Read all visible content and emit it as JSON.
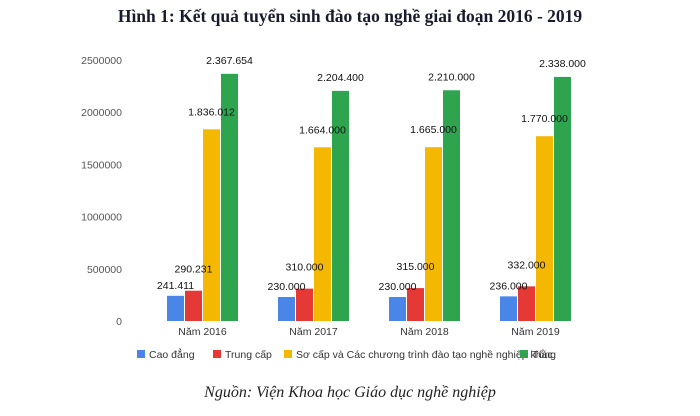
{
  "chart_data": {
    "type": "bar",
    "title": "Hình 1: Kết quả tuyển sinh đào tạo nghề giai đoạn 2016 - 2019",
    "categories": [
      "Năm 2016",
      "Năm 2017",
      "Năm 2018",
      "Năm 2019"
    ],
    "ylim": [
      0,
      2500000
    ],
    "yticks": [
      "0",
      "500000",
      "1000000",
      "1500000",
      "2000000",
      "2500000"
    ],
    "legend_position": "bottom",
    "grid": false,
    "series": [
      {
        "name": "Cao đẳng",
        "color": "#4A86E8",
        "values": [
          241411,
          230000,
          230000,
          236000
        ],
        "labels": [
          "241.411",
          "230.000",
          "230.000",
          "236.000"
        ]
      },
      {
        "name": "Trung cấp",
        "color": "#E53935",
        "values": [
          290231,
          310000,
          315000,
          332000
        ],
        "labels": [
          "290.231",
          "310.000",
          "315.000",
          "332.000"
        ]
      },
      {
        "name": "Sơ cấp và Các chương trình đào tạo nghề nghiệp khác",
        "color": "#F5B800",
        "values": [
          1836012,
          1664000,
          1665000,
          1770000
        ],
        "labels": [
          "1.836.012",
          "1.664.000",
          "1.665.000",
          "1.770.000"
        ]
      },
      {
        "name": "Tổng",
        "color": "#2EA44F",
        "values": [
          2367654,
          2204400,
          2210000,
          2338000
        ],
        "labels": [
          "2.367.654",
          "2.204.400",
          "2.210.000",
          "2.338.000"
        ]
      }
    ]
  },
  "source": "Nguồn: Viện Khoa học Giáo dục nghề nghiệp"
}
